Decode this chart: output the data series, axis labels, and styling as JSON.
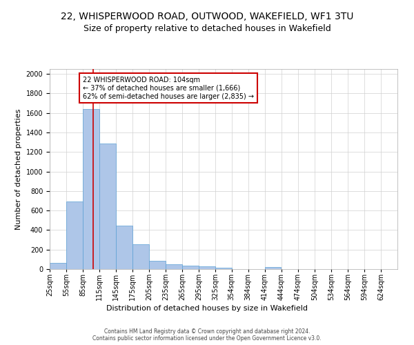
{
  "title": "22, WHISPERWOOD ROAD, OUTWOOD, WAKEFIELD, WF1 3TU",
  "subtitle": "Size of property relative to detached houses in Wakefield",
  "xlabel": "Distribution of detached houses by size in Wakefield",
  "ylabel": "Number of detached properties",
  "bar_color": "#aec6e8",
  "bar_edge_color": "#5a9fd4",
  "grid_color": "#d0d0d0",
  "annotation_text": "22 WHISPERWOOD ROAD: 104sqm\n← 37% of detached houses are smaller (1,666)\n62% of semi-detached houses are larger (2,835) →",
  "annotation_box_color": "#ffffff",
  "annotation_box_edge_color": "#cc0000",
  "vline_x": 104,
  "vline_color": "#cc0000",
  "footer_text": "Contains HM Land Registry data © Crown copyright and database right 2024.\nContains public sector information licensed under the Open Government Licence v3.0.",
  "bins": [
    25,
    55,
    85,
    115,
    145,
    175,
    205,
    235,
    265,
    295,
    325,
    354,
    384,
    414,
    444,
    474,
    504,
    534,
    564,
    594,
    624
  ],
  "bin_labels": [
    "25sqm",
    "55sqm",
    "85sqm",
    "115sqm",
    "145sqm",
    "175sqm",
    "205sqm",
    "235sqm",
    "265sqm",
    "295sqm",
    "325sqm",
    "354sqm",
    "384sqm",
    "414sqm",
    "444sqm",
    "474sqm",
    "504sqm",
    "534sqm",
    "564sqm",
    "594sqm",
    "624sqm"
  ],
  "bar_values": [
    65,
    695,
    1640,
    1285,
    445,
    255,
    85,
    50,
    35,
    28,
    15,
    0,
    0,
    18,
    0,
    0,
    0,
    0,
    0,
    0
  ],
  "ylim": [
    0,
    2050
  ],
  "yticks": [
    0,
    200,
    400,
    600,
    800,
    1000,
    1200,
    1400,
    1600,
    1800,
    2000
  ],
  "background_color": "#ffffff",
  "title_fontsize": 10,
  "subtitle_fontsize": 9,
  "xlabel_fontsize": 8,
  "ylabel_fontsize": 8,
  "tick_fontsize": 7,
  "footer_fontsize": 5.5
}
